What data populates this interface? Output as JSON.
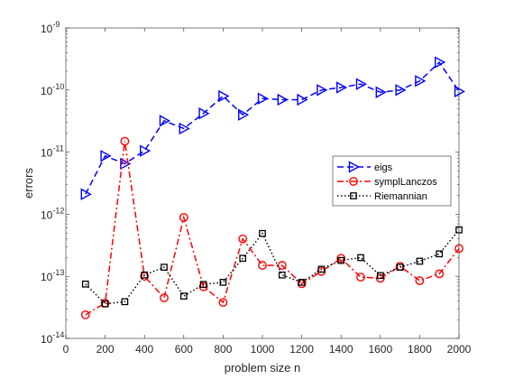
{
  "chart_data": {
    "type": "line",
    "title": "",
    "xlabel": "problem size n",
    "ylabel": "errors",
    "xlim": [
      0,
      2000
    ],
    "ylim_log10": [
      -14,
      -9
    ],
    "yscale": "log",
    "grid": false,
    "legend_position": "right-middle",
    "x_ticks": [
      {
        "value": 0,
        "label": "0"
      },
      {
        "value": 200,
        "label": "200"
      },
      {
        "value": 400,
        "label": "400"
      },
      {
        "value": 600,
        "label": "600"
      },
      {
        "value": 800,
        "label": "800"
      },
      {
        "value": 1000,
        "label": "1000"
      },
      {
        "value": 1200,
        "label": "1200"
      },
      {
        "value": 1400,
        "label": "1400"
      },
      {
        "value": 1600,
        "label": "1600"
      },
      {
        "value": 1800,
        "label": "1800"
      },
      {
        "value": 2000,
        "label": "2000"
      }
    ],
    "y_ticks": [
      {
        "exp": -14,
        "base": "10",
        "sup": "-14"
      },
      {
        "exp": -13,
        "base": "10",
        "sup": "-13"
      },
      {
        "exp": -12,
        "base": "10",
        "sup": "-12"
      },
      {
        "exp": -11,
        "base": "10",
        "sup": "-11"
      },
      {
        "exp": -10,
        "base": "10",
        "sup": "-10"
      },
      {
        "exp": -9,
        "base": "10",
        "sup": "-9"
      }
    ],
    "x": [
      100,
      200,
      300,
      400,
      500,
      600,
      700,
      800,
      900,
      1000,
      1100,
      1200,
      1300,
      1400,
      1500,
      1600,
      1700,
      1800,
      1900,
      2000
    ],
    "series": [
      {
        "name": "eigs",
        "color": "#0000ff",
        "dash": "dashed",
        "marker": "triangle-right",
        "values": [
          2.1e-12,
          8.7e-12,
          6.5e-12,
          1.05e-11,
          3.2e-11,
          2.4e-11,
          4.2e-11,
          8e-11,
          4e-11,
          7.3e-11,
          7e-11,
          7e-11,
          1e-10,
          1.1e-10,
          1.25e-10,
          9.2e-11,
          1e-10,
          1.4e-10,
          2.8e-10,
          9.5e-11
        ]
      },
      {
        "name": "symplLanczos",
        "color": "#ff0000",
        "dash": "dashdot",
        "marker": "circle",
        "values": [
          2.4e-14,
          3.7e-14,
          1.5e-11,
          1e-13,
          4.5e-14,
          8.9e-13,
          6.8e-14,
          3.8e-14,
          4e-13,
          1.5e-13,
          1.5e-13,
          7.6e-14,
          1.2e-13,
          1.95e-13,
          9.7e-14,
          9.3e-14,
          1.45e-13,
          8.5e-14,
          1.1e-13,
          2.8e-13
        ]
      },
      {
        "name": "Riemannian",
        "color": "#000000",
        "dash": "dotted",
        "marker": "square",
        "values": [
          7.5e-14,
          3.6e-14,
          3.9e-14,
          1.05e-13,
          1.4e-13,
          4.8e-14,
          7.4e-14,
          8e-14,
          1.95e-13,
          4.9e-13,
          1.05e-13,
          8e-14,
          1.3e-13,
          1.8e-13,
          2e-13,
          1.03e-13,
          1.4e-13,
          1.75e-13,
          2.3e-13,
          5.6e-13
        ]
      }
    ]
  }
}
